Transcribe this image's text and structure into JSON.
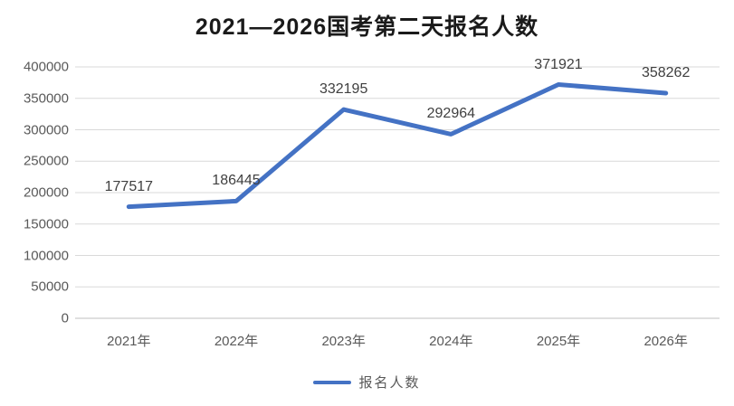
{
  "title": "2021—2026国考第二天报名人数",
  "legend": {
    "label": "报名人数"
  },
  "colors": {
    "line": "#4472C4",
    "gridline": "#D9D9D9",
    "axis_line": "#BFBFBF",
    "tick_label": "#595959",
    "data_label": "#404040",
    "title": "#1a1a1a"
  },
  "chart_data": {
    "type": "line",
    "title": "2021—2026国考第二天报名人数",
    "categories": [
      "2021年",
      "2022年",
      "2023年",
      "2024年",
      "2025年",
      "2026年"
    ],
    "series": [
      {
        "name": "报名人数",
        "values": [
          177517,
          186445,
          332195,
          292964,
          371921,
          358262
        ]
      }
    ],
    "data_labels": [
      "177517",
      "186445",
      "332195",
      "292964",
      "371921",
      "358262"
    ],
    "ylim": [
      0,
      400000
    ],
    "ytick_step": 50000,
    "yticks": [
      "0",
      "50000",
      "100000",
      "150000",
      "200000",
      "250000",
      "300000",
      "350000",
      "400000"
    ],
    "grid": "horizontal",
    "legend_position": "bottom",
    "xlabel": "",
    "ylabel": ""
  }
}
